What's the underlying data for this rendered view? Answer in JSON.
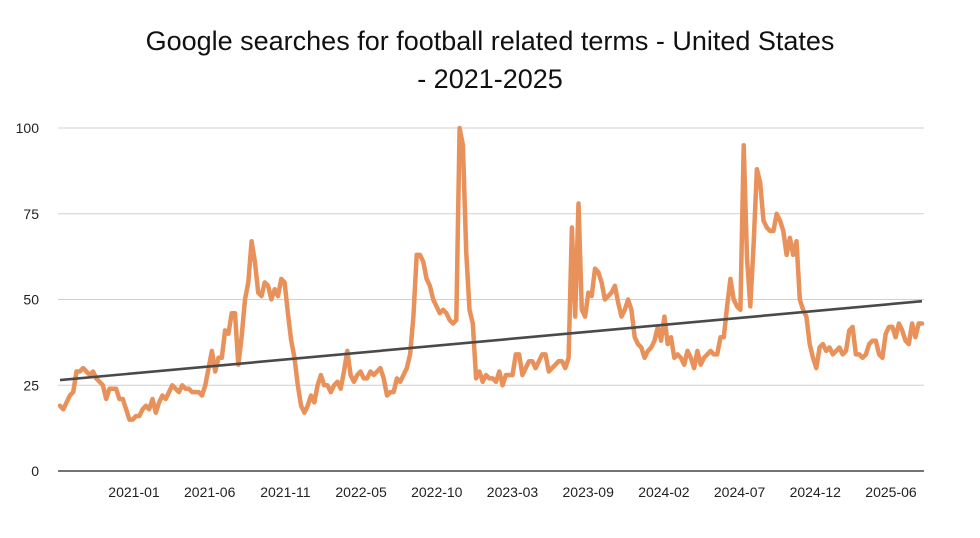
{
  "chart_data": {
    "type": "line",
    "title": "Google searches for football related terms - United States - 2021-2025",
    "xlabel": "",
    "ylabel": "",
    "ylim": [
      0,
      100
    ],
    "yticks": [
      0,
      25,
      50,
      75,
      100
    ],
    "xticks": [
      "2021-01",
      "2021-06",
      "2021-11",
      "2022-05",
      "2022-10",
      "2023-03",
      "2023-09",
      "2024-02",
      "2024-07",
      "2024-12",
      "2025-06"
    ],
    "grid": true,
    "legend": "none",
    "colors": {
      "series": "#e8915a",
      "trend": "#4a4a4a",
      "grid": "#d0d0d0",
      "axis": "#222222"
    },
    "series": [
      {
        "values": [
          19,
          18,
          20,
          22,
          23,
          29,
          29,
          30,
          29,
          28,
          29,
          27,
          26,
          25,
          21,
          24,
          24,
          24,
          21,
          21,
          18,
          15,
          15,
          16,
          16,
          18,
          19,
          18,
          21,
          17,
          20,
          22,
          21,
          23,
          25,
          24,
          23,
          25,
          24,
          24,
          23,
          23,
          23,
          22,
          25,
          30,
          35,
          29,
          33,
          33,
          41,
          40,
          46,
          46,
          31,
          39,
          50,
          55,
          67,
          61,
          52,
          51,
          55,
          54,
          50,
          53,
          51,
          56,
          55,
          46,
          38,
          33,
          25,
          19,
          17,
          19,
          22,
          20,
          25,
          28,
          25,
          25,
          23,
          25,
          26,
          24,
          29,
          35,
          28,
          26,
          28,
          29,
          27,
          27,
          29,
          28,
          29,
          30,
          27,
          22,
          23,
          23,
          27,
          26,
          28,
          30,
          34,
          45,
          63,
          63,
          61,
          56,
          54,
          50,
          48,
          46,
          47,
          46,
          44,
          43,
          44,
          100,
          95,
          64,
          47,
          43,
          27,
          29,
          26,
          28,
          27,
          27,
          26,
          29,
          25,
          28,
          28,
          28,
          34,
          34,
          28,
          30,
          32,
          32,
          30,
          32,
          34,
          34,
          29,
          30,
          31,
          32,
          32,
          30,
          33,
          71,
          45,
          78,
          47,
          45,
          52,
          51,
          59,
          58,
          55,
          50,
          51,
          52,
          54,
          49,
          45,
          47,
          50,
          47,
          39,
          37,
          36,
          33,
          35,
          36,
          38,
          42,
          38,
          45,
          37,
          39,
          33,
          34,
          33,
          31,
          35,
          33,
          30,
          35,
          31,
          33,
          34,
          35,
          34,
          34,
          39,
          39,
          48,
          56,
          50,
          48,
          47,
          95,
          62,
          48,
          66,
          88,
          84,
          73,
          71,
          70,
          70,
          75,
          73,
          70,
          63,
          68,
          63,
          67,
          50,
          47,
          45,
          37,
          33,
          30,
          36,
          37,
          35,
          36,
          34,
          35,
          36,
          34,
          35,
          41,
          42,
          34,
          34,
          33,
          34,
          37,
          38,
          38,
          34,
          33,
          40,
          42,
          42,
          39,
          43,
          41,
          38,
          37,
          43,
          39,
          43,
          43
        ]
      },
      {
        "values": [
          26.5,
          49.5
        ]
      }
    ]
  }
}
